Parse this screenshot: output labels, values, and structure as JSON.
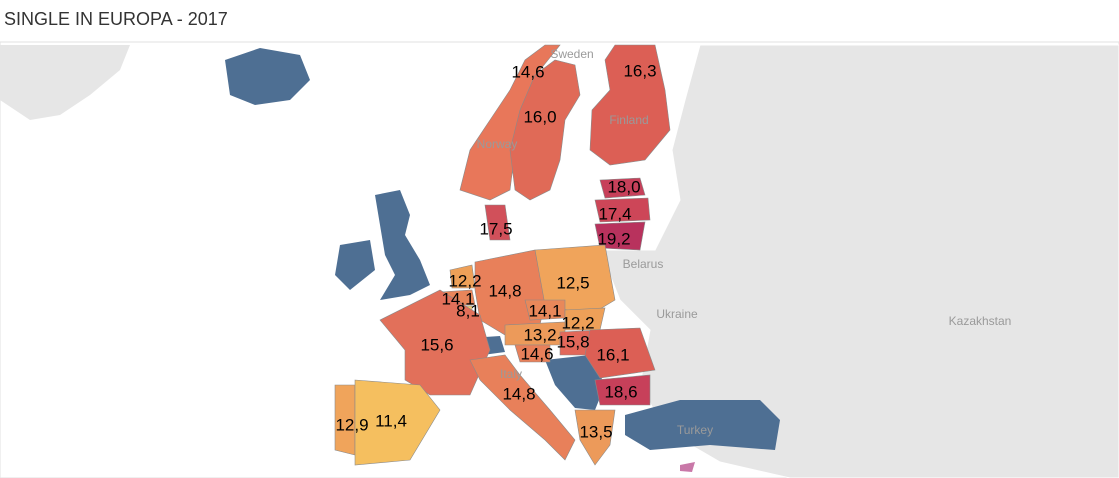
{
  "title": "SINGLE IN EUROPA - 2017",
  "place_names": [
    "Sweden",
    "Finland",
    "Norway",
    "Belarus",
    "Ukraine",
    "Kazakhstan",
    "Turkey",
    "Italy"
  ],
  "regions": [
    {
      "value": 14.6,
      "label": "14,6",
      "color": "#e8775a"
    },
    {
      "value": 16.3,
      "label": "16,3",
      "color": "#dc5f55"
    },
    {
      "value": 16.0,
      "label": "16,0",
      "color": "#e06a57"
    },
    {
      "value": 18.0,
      "label": "18,0",
      "color": "#c7405a"
    },
    {
      "value": 17.4,
      "label": "17,4",
      "color": "#cd4658"
    },
    {
      "value": 19.2,
      "label": "19,2",
      "color": "#b8325d"
    },
    {
      "value": 17.5,
      "label": "17,5",
      "color": "#d1505a"
    },
    {
      "value": 12.2,
      "label": "12,2",
      "color": "#eea058"
    },
    {
      "value": 14.1,
      "label": "14,1",
      "color": "#e8855a"
    },
    {
      "value": 8.1,
      "label": "8,1",
      "color": "#f7d070"
    },
    {
      "value": 14.8,
      "label": "14,8",
      "color": "#e8805a"
    },
    {
      "value": 12.5,
      "label": "12,5",
      "color": "#f0a45b"
    },
    {
      "value": 14.1,
      "label": "14,1",
      "color": "#e8885a"
    },
    {
      "value": 12.2,
      "label": "12,2",
      "color": "#eea058"
    },
    {
      "value": 13.2,
      "label": "13,2",
      "color": "#ec9a5a"
    },
    {
      "value": 15.8,
      "label": "15,8",
      "color": "#e2685a"
    },
    {
      "value": 14.6,
      "label": "14,6",
      "color": "#e8805a"
    },
    {
      "value": 16.1,
      "label": "16,1",
      "color": "#dc5f55"
    },
    {
      "value": 15.6,
      "label": "15,6",
      "color": "#e2705a"
    },
    {
      "value": 18.6,
      "label": "18,6",
      "color": "#c7405a"
    },
    {
      "value": 14.8,
      "label": "14,8",
      "color": "#e8805a"
    },
    {
      "value": 13.5,
      "label": "13,5",
      "color": "#ec9a5a"
    },
    {
      "value": 12.9,
      "label": "12,9",
      "color": "#f0a45b"
    },
    {
      "value": 11.4,
      "label": "11,4",
      "color": "#f5bf5f"
    }
  ]
}
